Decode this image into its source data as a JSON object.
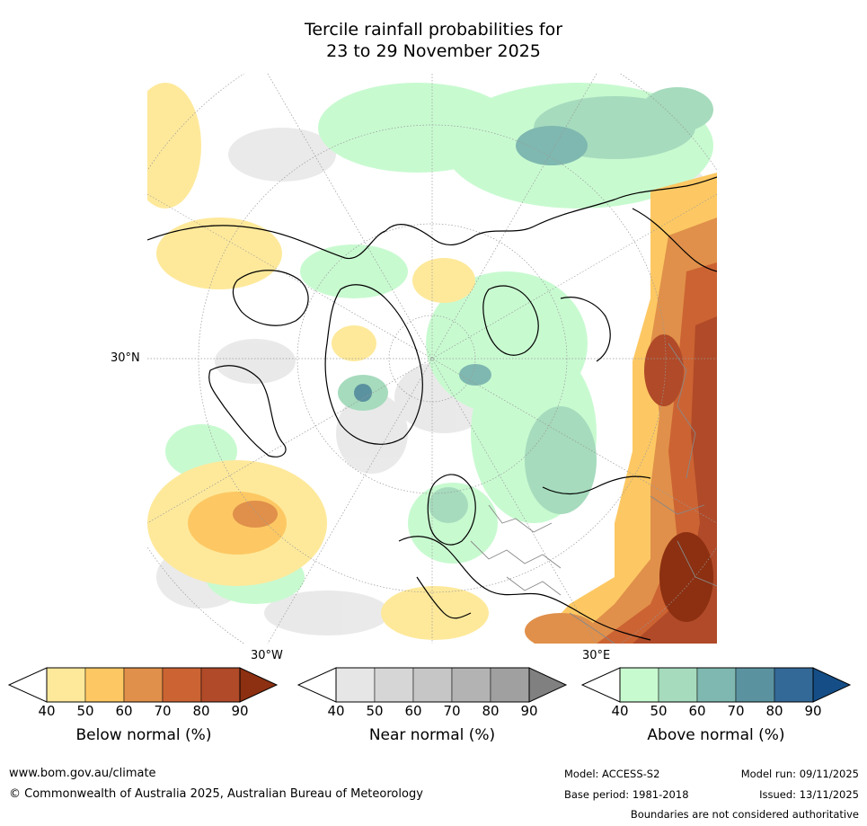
{
  "title": {
    "line1": "Tercile rainfall probabilities for",
    "line2": "23 to 29 November 2025"
  },
  "map": {
    "lat_label": "30°N",
    "lon_labels": {
      "west": "30°W",
      "east": "30°E"
    },
    "colors": {
      "land_outline": "#000000",
      "border": "#888888",
      "graticule": "#999999"
    }
  },
  "colorbars": [
    {
      "name": "below",
      "label": "Below normal (%)",
      "ticks": [
        "40",
        "50",
        "60",
        "70",
        "80",
        "90"
      ],
      "colors": [
        "#ffffff",
        "#fee99b",
        "#fdc863",
        "#e0904a",
        "#cc6333",
        "#b04a28",
        "#8c3011"
      ]
    },
    {
      "name": "near",
      "label": "Near normal (%)",
      "ticks": [
        "40",
        "50",
        "60",
        "70",
        "80",
        "90"
      ],
      "colors": [
        "#ffffff",
        "#e6e6e6",
        "#d6d6d6",
        "#c6c6c6",
        "#b3b3b3",
        "#a0a0a0",
        "#808080"
      ]
    },
    {
      "name": "above",
      "label": "Above normal (%)",
      "ticks": [
        "40",
        "50",
        "60",
        "70",
        "80",
        "90"
      ],
      "colors": [
        "#ffffff",
        "#c8fad0",
        "#a6dbbd",
        "#7fb8b0",
        "#5b92a0",
        "#336996",
        "#154e86"
      ]
    }
  ],
  "footer": {
    "website": "www.bom.gov.au/climate",
    "copyright": "© Commonwealth of Australia 2025, Australian Bureau of Meteorology",
    "model": "Model: ACCESS-S2",
    "model_run": "Model run: 09/11/2025",
    "base_period": "Base period: 1981-2018",
    "issued": "Issued: 13/11/2025",
    "disclaimer": "Boundaries are not considered authoritative"
  }
}
